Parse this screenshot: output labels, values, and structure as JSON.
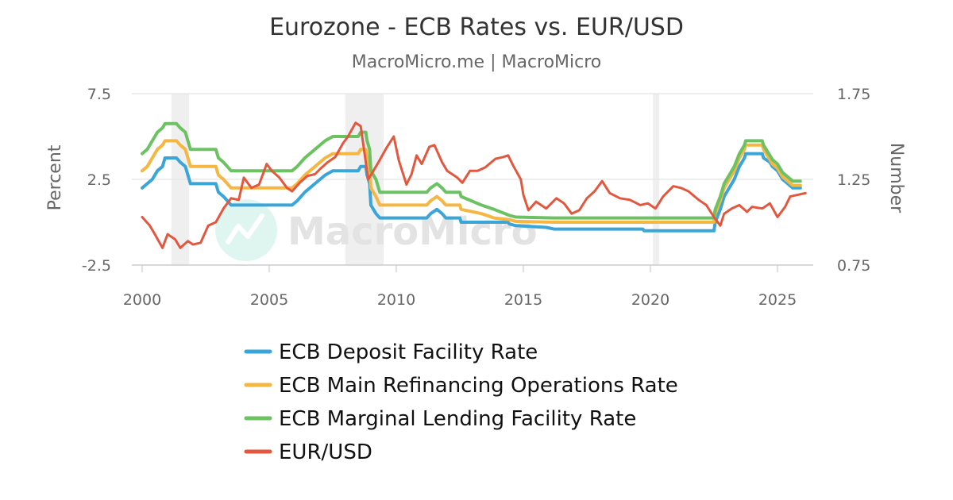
{
  "chart_data": {
    "type": "line",
    "title": "Eurozone - ECB Rates vs. EUR/USD",
    "subtitle": "MacroMicro.me | MacroMicro",
    "watermark": "MacroMicro",
    "x_ticks": [
      "2000",
      "2005",
      "2010",
      "2015",
      "2020",
      "2025"
    ],
    "xlim": [
      2000,
      2026.5
    ],
    "y_left": {
      "label": "Percent",
      "lim": [
        -2.5,
        7.5
      ],
      "ticks": [
        "7.5",
        "2.5",
        "-2.5"
      ]
    },
    "y_right": {
      "label": "Number",
      "lim": [
        0.75,
        1.75
      ],
      "ticks": [
        "1.75",
        "1.25",
        "0.75"
      ]
    },
    "recession_bands": [
      [
        2001.15,
        2001.85
      ],
      [
        2008.0,
        2009.5
      ],
      [
        2020.1,
        2020.35
      ]
    ],
    "grid": true,
    "legend_position": "bottom",
    "series": [
      {
        "name": "ECB Deposit Facility Rate",
        "axis": "left",
        "color": "#3aa5d8",
        "points": [
          [
            2000.0,
            2.0
          ],
          [
            2000.2,
            2.25
          ],
          [
            2000.4,
            2.5
          ],
          [
            2000.6,
            3.0
          ],
          [
            2000.8,
            3.25
          ],
          [
            2000.9,
            3.75
          ],
          [
            2001.35,
            3.75
          ],
          [
            2001.5,
            3.5
          ],
          [
            2001.7,
            3.25
          ],
          [
            2001.8,
            2.75
          ],
          [
            2001.9,
            2.25
          ],
          [
            2002.9,
            2.25
          ],
          [
            2003.0,
            1.75
          ],
          [
            2003.2,
            1.5
          ],
          [
            2003.5,
            1.0
          ],
          [
            2005.9,
            1.0
          ],
          [
            2006.1,
            1.25
          ],
          [
            2006.4,
            1.75
          ],
          [
            2006.8,
            2.25
          ],
          [
            2007.2,
            2.75
          ],
          [
            2007.5,
            3.0
          ],
          [
            2008.5,
            3.0
          ],
          [
            2008.6,
            3.25
          ],
          [
            2008.8,
            3.25
          ],
          [
            2008.85,
            2.75
          ],
          [
            2008.95,
            2.25
          ],
          [
            2009.0,
            1.0
          ],
          [
            2009.2,
            0.5
          ],
          [
            2009.35,
            0.25
          ],
          [
            2011.2,
            0.25
          ],
          [
            2011.35,
            0.5
          ],
          [
            2011.6,
            0.75
          ],
          [
            2011.8,
            0.5
          ],
          [
            2011.95,
            0.25
          ],
          [
            2012.5,
            0.25
          ],
          [
            2012.55,
            0.0
          ],
          [
            2014.4,
            0.0
          ],
          [
            2014.45,
            -0.1
          ],
          [
            2014.7,
            -0.2
          ],
          [
            2015.9,
            -0.3
          ],
          [
            2016.2,
            -0.4
          ],
          [
            2019.7,
            -0.4
          ],
          [
            2019.75,
            -0.5
          ],
          [
            2022.5,
            -0.5
          ],
          [
            2022.55,
            0.0
          ],
          [
            2022.75,
            0.75
          ],
          [
            2022.9,
            1.5
          ],
          [
            2023.1,
            2.0
          ],
          [
            2023.3,
            2.5
          ],
          [
            2023.5,
            3.25
          ],
          [
            2023.7,
            3.75
          ],
          [
            2023.75,
            4.0
          ],
          [
            2024.4,
            4.0
          ],
          [
            2024.45,
            3.75
          ],
          [
            2024.7,
            3.5
          ],
          [
            2024.8,
            3.25
          ],
          [
            2025.0,
            3.0
          ],
          [
            2025.2,
            2.5
          ],
          [
            2025.4,
            2.25
          ],
          [
            2025.6,
            2.0
          ],
          [
            2025.9,
            2.0
          ]
        ]
      },
      {
        "name": "ECB Main Refinancing Operations Rate",
        "axis": "left",
        "color": "#f5b642",
        "points": [
          [
            2000.0,
            3.0
          ],
          [
            2000.2,
            3.25
          ],
          [
            2000.4,
            3.75
          ],
          [
            2000.6,
            4.25
          ],
          [
            2000.8,
            4.5
          ],
          [
            2000.9,
            4.75
          ],
          [
            2001.35,
            4.75
          ],
          [
            2001.5,
            4.5
          ],
          [
            2001.7,
            4.25
          ],
          [
            2001.8,
            3.75
          ],
          [
            2001.9,
            3.25
          ],
          [
            2002.9,
            3.25
          ],
          [
            2003.0,
            2.75
          ],
          [
            2003.2,
            2.5
          ],
          [
            2003.5,
            2.0
          ],
          [
            2005.9,
            2.0
          ],
          [
            2006.1,
            2.25
          ],
          [
            2006.4,
            2.75
          ],
          [
            2006.8,
            3.25
          ],
          [
            2007.2,
            3.75
          ],
          [
            2007.5,
            4.0
          ],
          [
            2008.5,
            4.0
          ],
          [
            2008.6,
            4.25
          ],
          [
            2008.8,
            4.25
          ],
          [
            2008.85,
            3.75
          ],
          [
            2008.95,
            3.25
          ],
          [
            2009.0,
            2.0
          ],
          [
            2009.2,
            1.5
          ],
          [
            2009.35,
            1.0
          ],
          [
            2011.2,
            1.0
          ],
          [
            2011.35,
            1.25
          ],
          [
            2011.6,
            1.5
          ],
          [
            2011.8,
            1.25
          ],
          [
            2011.95,
            1.0
          ],
          [
            2012.5,
            1.0
          ],
          [
            2012.55,
            0.75
          ],
          [
            2013.35,
            0.5
          ],
          [
            2013.85,
            0.25
          ],
          [
            2014.45,
            0.15
          ],
          [
            2014.7,
            0.05
          ],
          [
            2016.2,
            0.0
          ],
          [
            2022.5,
            0.0
          ],
          [
            2022.55,
            0.5
          ],
          [
            2022.75,
            1.25
          ],
          [
            2022.9,
            2.0
          ],
          [
            2023.1,
            2.5
          ],
          [
            2023.3,
            3.0
          ],
          [
            2023.5,
            3.75
          ],
          [
            2023.7,
            4.25
          ],
          [
            2023.75,
            4.5
          ],
          [
            2024.4,
            4.5
          ],
          [
            2024.45,
            4.25
          ],
          [
            2024.7,
            3.65
          ],
          [
            2024.8,
            3.4
          ],
          [
            2025.0,
            3.15
          ],
          [
            2025.2,
            2.65
          ],
          [
            2025.4,
            2.4
          ],
          [
            2025.6,
            2.15
          ],
          [
            2025.9,
            2.15
          ]
        ]
      },
      {
        "name": "ECB Marginal Lending Facility Rate",
        "axis": "left",
        "color": "#6cc262",
        "points": [
          [
            2000.0,
            4.0
          ],
          [
            2000.2,
            4.25
          ],
          [
            2000.4,
            4.75
          ],
          [
            2000.6,
            5.25
          ],
          [
            2000.8,
            5.5
          ],
          [
            2000.9,
            5.75
          ],
          [
            2001.35,
            5.75
          ],
          [
            2001.5,
            5.5
          ],
          [
            2001.7,
            5.25
          ],
          [
            2001.8,
            4.75
          ],
          [
            2001.9,
            4.25
          ],
          [
            2002.9,
            4.25
          ],
          [
            2003.0,
            3.75
          ],
          [
            2003.2,
            3.5
          ],
          [
            2003.5,
            3.0
          ],
          [
            2005.9,
            3.0
          ],
          [
            2006.1,
            3.25
          ],
          [
            2006.4,
            3.75
          ],
          [
            2006.8,
            4.25
          ],
          [
            2007.2,
            4.75
          ],
          [
            2007.5,
            5.0
          ],
          [
            2008.5,
            5.0
          ],
          [
            2008.6,
            5.25
          ],
          [
            2008.8,
            5.25
          ],
          [
            2008.85,
            4.75
          ],
          [
            2008.95,
            4.25
          ],
          [
            2009.0,
            3.0
          ],
          [
            2009.2,
            2.5
          ],
          [
            2009.35,
            1.75
          ],
          [
            2011.2,
            1.75
          ],
          [
            2011.35,
            2.0
          ],
          [
            2011.6,
            2.25
          ],
          [
            2011.8,
            2.0
          ],
          [
            2011.95,
            1.75
          ],
          [
            2012.5,
            1.75
          ],
          [
            2012.55,
            1.5
          ],
          [
            2013.35,
            1.0
          ],
          [
            2013.85,
            0.75
          ],
          [
            2014.45,
            0.4
          ],
          [
            2014.7,
            0.3
          ],
          [
            2016.2,
            0.25
          ],
          [
            2022.5,
            0.25
          ],
          [
            2022.55,
            0.75
          ],
          [
            2022.75,
            1.5
          ],
          [
            2022.9,
            2.25
          ],
          [
            2023.1,
            2.75
          ],
          [
            2023.3,
            3.25
          ],
          [
            2023.5,
            4.0
          ],
          [
            2023.7,
            4.5
          ],
          [
            2023.75,
            4.75
          ],
          [
            2024.4,
            4.75
          ],
          [
            2024.45,
            4.5
          ],
          [
            2024.7,
            3.9
          ],
          [
            2024.8,
            3.65
          ],
          [
            2025.0,
            3.4
          ],
          [
            2025.2,
            2.9
          ],
          [
            2025.4,
            2.65
          ],
          [
            2025.6,
            2.4
          ],
          [
            2025.9,
            2.4
          ]
        ]
      },
      {
        "name": "EUR/USD",
        "axis": "right",
        "color": "#e4573f",
        "points": [
          [
            2000.0,
            1.03
          ],
          [
            2000.3,
            0.98
          ],
          [
            2000.5,
            0.93
          ],
          [
            2000.8,
            0.85
          ],
          [
            2001.0,
            0.93
          ],
          [
            2001.3,
            0.9
          ],
          [
            2001.5,
            0.85
          ],
          [
            2001.8,
            0.89
          ],
          [
            2002.0,
            0.87
          ],
          [
            2002.3,
            0.88
          ],
          [
            2002.6,
            0.98
          ],
          [
            2002.9,
            1.0
          ],
          [
            2003.2,
            1.08
          ],
          [
            2003.5,
            1.14
          ],
          [
            2003.8,
            1.13
          ],
          [
            2004.0,
            1.26
          ],
          [
            2004.3,
            1.2
          ],
          [
            2004.6,
            1.22
          ],
          [
            2004.9,
            1.34
          ],
          [
            2005.1,
            1.3
          ],
          [
            2005.4,
            1.26
          ],
          [
            2005.7,
            1.2
          ],
          [
            2005.9,
            1.18
          ],
          [
            2006.2,
            1.23
          ],
          [
            2006.5,
            1.27
          ],
          [
            2006.8,
            1.28
          ],
          [
            2007.0,
            1.31
          ],
          [
            2007.3,
            1.35
          ],
          [
            2007.6,
            1.38
          ],
          [
            2007.9,
            1.46
          ],
          [
            2008.1,
            1.5
          ],
          [
            2008.4,
            1.58
          ],
          [
            2008.6,
            1.56
          ],
          [
            2008.8,
            1.35
          ],
          [
            2008.9,
            1.25
          ],
          [
            2009.1,
            1.3
          ],
          [
            2009.3,
            1.35
          ],
          [
            2009.6,
            1.43
          ],
          [
            2009.9,
            1.5
          ],
          [
            2010.1,
            1.36
          ],
          [
            2010.4,
            1.22
          ],
          [
            2010.6,
            1.28
          ],
          [
            2010.8,
            1.39
          ],
          [
            2011.0,
            1.34
          ],
          [
            2011.3,
            1.44
          ],
          [
            2011.5,
            1.45
          ],
          [
            2011.8,
            1.35
          ],
          [
            2012.0,
            1.3
          ],
          [
            2012.4,
            1.26
          ],
          [
            2012.6,
            1.23
          ],
          [
            2012.9,
            1.3
          ],
          [
            2013.2,
            1.3
          ],
          [
            2013.5,
            1.32
          ],
          [
            2013.9,
            1.37
          ],
          [
            2014.2,
            1.38
          ],
          [
            2014.4,
            1.39
          ],
          [
            2014.6,
            1.33
          ],
          [
            2014.9,
            1.25
          ],
          [
            2015.0,
            1.16
          ],
          [
            2015.2,
            1.07
          ],
          [
            2015.5,
            1.12
          ],
          [
            2015.9,
            1.08
          ],
          [
            2016.3,
            1.14
          ],
          [
            2016.6,
            1.11
          ],
          [
            2016.9,
            1.05
          ],
          [
            2017.2,
            1.07
          ],
          [
            2017.5,
            1.14
          ],
          [
            2017.8,
            1.18
          ],
          [
            2018.1,
            1.24
          ],
          [
            2018.4,
            1.17
          ],
          [
            2018.8,
            1.14
          ],
          [
            2019.2,
            1.13
          ],
          [
            2019.6,
            1.1
          ],
          [
            2019.9,
            1.11
          ],
          [
            2020.2,
            1.08
          ],
          [
            2020.5,
            1.15
          ],
          [
            2020.9,
            1.21
          ],
          [
            2021.2,
            1.2
          ],
          [
            2021.5,
            1.18
          ],
          [
            2021.9,
            1.13
          ],
          [
            2022.2,
            1.1
          ],
          [
            2022.5,
            1.03
          ],
          [
            2022.75,
            0.98
          ],
          [
            2022.9,
            1.05
          ],
          [
            2023.2,
            1.08
          ],
          [
            2023.5,
            1.1
          ],
          [
            2023.8,
            1.06
          ],
          [
            2024.0,
            1.09
          ],
          [
            2024.4,
            1.08
          ],
          [
            2024.7,
            1.11
          ],
          [
            2025.0,
            1.03
          ],
          [
            2025.3,
            1.09
          ],
          [
            2025.5,
            1.15
          ],
          [
            2025.8,
            1.16
          ],
          [
            2026.1,
            1.17
          ]
        ]
      }
    ]
  }
}
